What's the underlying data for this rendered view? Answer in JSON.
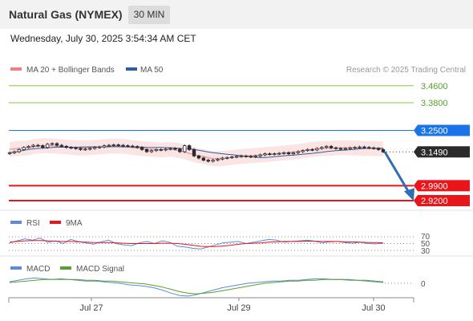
{
  "header": {
    "title": "Natural Gas (NYMEX)",
    "timeframe": "30 MIN",
    "datetime": "Wednesday, July 30, 2025 3:54:34 AM CET"
  },
  "colors": {
    "resistance": "#8bc34a",
    "ma50": "#2f5f9e",
    "pivot": "#1a73e8",
    "support": "#e8151b",
    "last_price": "#2b2b2b",
    "candle_up": "#2b2b2b",
    "candle_down": "#2b2b2b",
    "bollinger": "#f6c4c4",
    "ma20": "#f08080",
    "rsi": "#5b8bd9",
    "rsi_ma": "#e8151b",
    "macd": "#5b8bd9",
    "macd_signal": "#5aa02c",
    "arrow": "#2f6db5"
  },
  "chart_data": [
    {
      "type": "candlestick",
      "panel": "price",
      "legend": [
        {
          "label": "MA 20 + Bollinger Bands",
          "color": "#f08080"
        },
        {
          "label": "MA 50",
          "color": "#2f5f9e"
        }
      ],
      "credit": "Research © 2025 Trading Central",
      "levels": [
        {
          "label": "3.4600",
          "value": 3.46,
          "kind": "resistance"
        },
        {
          "label": "3.3800",
          "value": 3.38,
          "kind": "resistance"
        },
        {
          "label": "3.2500",
          "value": 3.25,
          "kind": "pivot"
        },
        {
          "label": "2.9900",
          "value": 2.99,
          "kind": "support"
        },
        {
          "label": "2.9200",
          "value": 2.92,
          "kind": "support"
        }
      ],
      "last_price": {
        "label": "3.1490",
        "value": 3.149
      },
      "forecast_arrow": {
        "from": 3.149,
        "to": 2.93
      },
      "ylim": [
        2.9,
        3.5
      ],
      "closes": [
        3.145,
        3.15,
        3.16,
        3.17,
        3.175,
        3.18,
        3.178,
        3.17,
        3.185,
        3.188,
        3.18,
        3.175,
        3.17,
        3.168,
        3.165,
        3.16,
        3.162,
        3.165,
        3.17,
        3.172,
        3.178,
        3.18,
        3.182,
        3.18,
        3.178,
        3.176,
        3.174,
        3.17,
        3.16,
        3.15,
        3.155,
        3.16,
        3.158,
        3.162,
        3.165,
        3.162,
        3.15,
        3.178,
        3.16,
        3.13,
        3.12,
        3.11,
        3.105,
        3.11,
        3.115,
        3.12,
        3.122,
        3.125,
        3.128,
        3.13,
        3.128,
        3.126,
        3.13,
        3.135,
        3.14,
        3.138,
        3.14,
        3.142,
        3.145,
        3.14,
        3.145,
        3.15,
        3.155,
        3.16,
        3.158,
        3.165,
        3.17,
        3.175,
        3.168,
        3.165,
        3.162,
        3.165,
        3.168,
        3.17,
        3.172,
        3.17,
        3.168,
        3.165,
        3.16,
        3.149
      ]
    },
    {
      "type": "line",
      "panel": "rsi",
      "legend": [
        {
          "label": "RSI",
          "color": "#5b8bd9"
        },
        {
          "label": "9MA",
          "color": "#e8151b"
        }
      ],
      "ticks": [
        "70",
        "50",
        "30"
      ],
      "ylim": [
        20,
        80
      ],
      "series": [
        {
          "name": "RSI",
          "values": [
            52,
            58,
            64,
            60,
            66,
            54,
            58,
            50,
            62,
            56,
            52,
            48,
            55,
            60,
            50,
            46,
            44,
            52,
            56,
            50,
            58,
            54,
            42,
            40,
            36,
            34,
            40,
            46,
            52,
            54,
            56,
            50,
            54,
            58,
            62,
            60,
            54,
            56,
            58,
            60,
            57,
            52,
            55,
            56,
            53,
            51,
            54,
            50,
            49,
            51
          ]
        },
        {
          "name": "9MA",
          "values": [
            54,
            56,
            58,
            59,
            59,
            58,
            57,
            56,
            56,
            55,
            54,
            53,
            53,
            53,
            52,
            51,
            50,
            50,
            50,
            50,
            51,
            51,
            50,
            48,
            45,
            42,
            41,
            41,
            43,
            45,
            48,
            50,
            51,
            52,
            54,
            55,
            56,
            56,
            56,
            57,
            57,
            56,
            56,
            56,
            55,
            55,
            54,
            53,
            53,
            52
          ]
        }
      ]
    },
    {
      "type": "line",
      "panel": "macd",
      "legend": [
        {
          "label": "MACD",
          "color": "#5b8bd9"
        },
        {
          "label": "MACD Signal",
          "color": "#5aa02c"
        }
      ],
      "ticks": [
        "0"
      ],
      "ylim": [
        -0.025,
        0.015
      ],
      "series": [
        {
          "name": "MACD",
          "values": [
            0.002,
            0.004,
            0.006,
            0.007,
            0.006,
            0.005,
            0.006,
            0.005,
            0.004,
            0.003,
            0.003,
            0.002,
            0.001,
            0.0,
            -0.002,
            -0.003,
            -0.004,
            -0.006,
            -0.009,
            -0.013,
            -0.016,
            -0.017,
            -0.015,
            -0.012,
            -0.009,
            -0.006,
            -0.004,
            -0.002,
            0.0,
            0.001,
            0.002,
            0.003,
            0.003,
            0.004,
            0.004,
            0.005,
            0.006,
            0.006,
            0.005,
            0.005,
            0.004,
            0.004,
            0.003,
            0.002,
            0.001
          ]
        },
        {
          "name": "MACD Signal",
          "values": [
            0.001,
            0.002,
            0.003,
            0.004,
            0.005,
            0.005,
            0.005,
            0.005,
            0.005,
            0.004,
            0.004,
            0.003,
            0.003,
            0.002,
            0.001,
            0.0,
            -0.001,
            -0.003,
            -0.005,
            -0.008,
            -0.011,
            -0.013,
            -0.014,
            -0.013,
            -0.012,
            -0.01,
            -0.008,
            -0.006,
            -0.004,
            -0.002,
            0.0,
            0.001,
            0.002,
            0.003,
            0.003,
            0.004,
            0.004,
            0.005,
            0.005,
            0.005,
            0.005,
            0.004,
            0.004,
            0.003,
            0.002
          ]
        }
      ]
    }
  ],
  "x_axis": {
    "ticks": [
      "Jul 27",
      "Jul 29",
      "Jul 30"
    ]
  }
}
